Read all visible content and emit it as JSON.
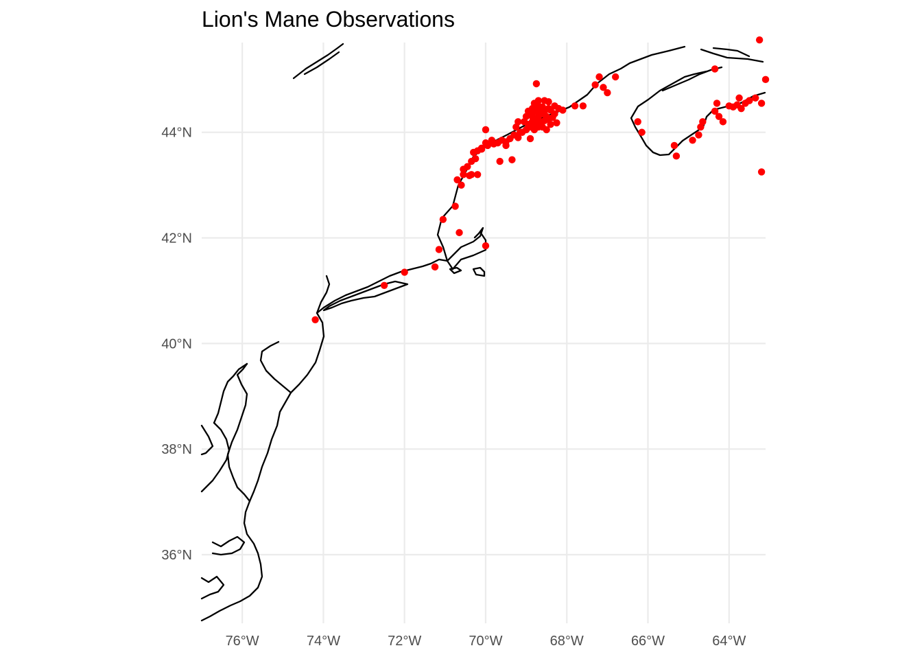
{
  "title": "Lion's Mane Observations",
  "map": {
    "projection": "equirectangular",
    "extent": {
      "lon": [
        -77.0,
        -63.1
      ],
      "lat": [
        34.7,
        45.7
      ]
    },
    "graticule": {
      "lon": [
        -76,
        -74,
        -72,
        -70,
        -68,
        -66,
        -64
      ],
      "lat": [
        36,
        38,
        40,
        42,
        44
      ],
      "lon_labels": [
        "76°W",
        "74°W",
        "72°W",
        "70°W",
        "68°W",
        "66°W",
        "64°W"
      ],
      "lat_labels": [
        "36°N",
        "38°N",
        "40°N",
        "42°N",
        "44°N"
      ]
    },
    "colors": {
      "coastline": "#000000",
      "points": "#ff0000",
      "grid": "#ebebeb",
      "axis_text": "#4d4d4d"
    },
    "features": [
      "US Atlantic coastline",
      "Long Island",
      "Cape Cod",
      "Martha's Vineyard",
      "Nantucket",
      "Gulf of Maine",
      "Nova Scotia",
      "Delaware Bay",
      "Chesapeake Bay",
      "Pamlico Sound"
    ],
    "observations": [
      [
        -74.2,
        40.45
      ],
      [
        -72.5,
        41.1
      ],
      [
        -72.0,
        41.35
      ],
      [
        -71.25,
        41.45
      ],
      [
        -71.15,
        41.78
      ],
      [
        -70.0,
        41.85
      ],
      [
        -70.65,
        42.1
      ],
      [
        -71.05,
        42.35
      ],
      [
        -70.75,
        42.6
      ],
      [
        -70.6,
        43.0
      ],
      [
        -70.7,
        43.1
      ],
      [
        -70.55,
        43.2
      ],
      [
        -70.4,
        43.18
      ],
      [
        -70.55,
        43.3
      ],
      [
        -70.45,
        43.35
      ],
      [
        -70.35,
        43.45
      ],
      [
        -70.25,
        43.5
      ],
      [
        -70.3,
        43.62
      ],
      [
        -70.2,
        43.65
      ],
      [
        -70.1,
        43.7
      ],
      [
        -70.0,
        43.8
      ],
      [
        -69.95,
        43.75
      ],
      [
        -69.8,
        43.78
      ],
      [
        -69.7,
        43.8
      ],
      [
        -69.6,
        43.85
      ],
      [
        -69.5,
        43.82
      ],
      [
        -69.4,
        43.88
      ],
      [
        -69.3,
        43.95
      ],
      [
        -69.2,
        43.9
      ],
      [
        -69.1,
        44.0
      ],
      [
        -69.0,
        44.05
      ],
      [
        -68.9,
        44.1
      ],
      [
        -68.85,
        44.2
      ],
      [
        -68.8,
        44.15
      ],
      [
        -68.75,
        44.25
      ],
      [
        -68.7,
        44.3
      ],
      [
        -68.65,
        44.2
      ],
      [
        -68.6,
        44.35
      ],
      [
        -68.55,
        44.4
      ],
      [
        -68.5,
        44.3
      ],
      [
        -68.45,
        44.25
      ],
      [
        -68.4,
        44.42
      ],
      [
        -68.3,
        44.35
      ],
      [
        -68.2,
        44.45
      ],
      [
        -68.1,
        44.42
      ],
      [
        -69.0,
        44.3
      ],
      [
        -68.95,
        44.4
      ],
      [
        -68.9,
        44.35
      ],
      [
        -68.85,
        44.45
      ],
      [
        -68.75,
        44.4
      ],
      [
        -68.7,
        44.5
      ],
      [
        -68.65,
        44.38
      ],
      [
        -68.6,
        44.48
      ],
      [
        -68.55,
        44.22
      ],
      [
        -68.45,
        44.45
      ],
      [
        -68.4,
        44.15
      ],
      [
        -68.35,
        44.28
      ],
      [
        -68.25,
        44.18
      ],
      [
        -68.8,
        44.05
      ],
      [
        -68.7,
        44.1
      ],
      [
        -68.6,
        44.1
      ],
      [
        -68.5,
        44.05
      ],
      [
        -69.05,
        44.2
      ],
      [
        -68.95,
        44.15
      ],
      [
        -68.85,
        44.3
      ],
      [
        -68.8,
        44.55
      ],
      [
        -68.7,
        44.6
      ],
      [
        -68.75,
        44.92
      ],
      [
        -68.9,
        43.88
      ],
      [
        -69.5,
        43.75
      ],
      [
        -69.65,
        43.45
      ],
      [
        -70.2,
        43.2
      ],
      [
        -70.1,
        43.68
      ],
      [
        -69.85,
        43.85
      ],
      [
        -69.15,
        44.0
      ],
      [
        -67.8,
        44.5
      ],
      [
        -67.6,
        44.5
      ],
      [
        -67.3,
        44.9
      ],
      [
        -67.2,
        45.05
      ],
      [
        -67.1,
        44.85
      ],
      [
        -67.0,
        44.75
      ],
      [
        -66.8,
        45.05
      ],
      [
        -66.25,
        44.2
      ],
      [
        -66.15,
        44.0
      ],
      [
        -65.35,
        43.75
      ],
      [
        -65.3,
        43.55
      ],
      [
        -64.9,
        43.85
      ],
      [
        -64.75,
        43.95
      ],
      [
        -64.7,
        44.1
      ],
      [
        -64.65,
        44.2
      ],
      [
        -64.35,
        44.4
      ],
      [
        -64.3,
        44.55
      ],
      [
        -64.25,
        44.3
      ],
      [
        -64.15,
        44.2
      ],
      [
        -64.0,
        44.5
      ],
      [
        -63.9,
        44.48
      ],
      [
        -63.8,
        44.52
      ],
      [
        -63.7,
        44.45
      ],
      [
        -63.6,
        44.55
      ],
      [
        -63.75,
        44.65
      ],
      [
        -63.5,
        44.6
      ],
      [
        -63.35,
        44.65
      ],
      [
        -63.2,
        44.55
      ],
      [
        -64.35,
        45.2
      ],
      [
        -63.25,
        45.75
      ],
      [
        -63.1,
        45.0
      ],
      [
        -63.2,
        43.25
      ],
      [
        -70.0,
        44.05
      ],
      [
        -69.35,
        43.48
      ],
      [
        -70.35,
        43.2
      ],
      [
        -68.55,
        44.6
      ],
      [
        -68.45,
        44.58
      ],
      [
        -68.3,
        44.5
      ],
      [
        -69.2,
        44.2
      ],
      [
        -69.25,
        44.1
      ]
    ]
  }
}
